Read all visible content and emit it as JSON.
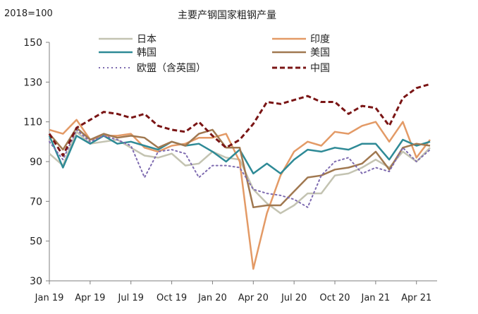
{
  "chart_data": {
    "type": "line",
    "title": "主要产钢国家粗钢产量",
    "unit_label": "2018=100",
    "xlabel": "",
    "ylabel": "",
    "ylim": [
      30,
      150
    ],
    "y_ticks": [
      30,
      50,
      70,
      90,
      110,
      130,
      150
    ],
    "x_tick_labels": [
      "Jan 19",
      "Apr 19",
      "Jul 19",
      "Oct 19",
      "Jan 20",
      "Apr 20",
      "Jul 20",
      "Oct 20",
      "Jan 21",
      "Apr 21"
    ],
    "x_tick_every": 3,
    "grid": false,
    "legend_position": "top",
    "x": [
      "2019-01",
      "2019-02",
      "2019-03",
      "2019-04",
      "2019-05",
      "2019-06",
      "2019-07",
      "2019-08",
      "2019-09",
      "2019-10",
      "2019-11",
      "2019-12",
      "2020-01",
      "2020-02",
      "2020-03",
      "2020-04",
      "2020-05",
      "2020-06",
      "2020-07",
      "2020-08",
      "2020-09",
      "2020-10",
      "2020-11",
      "2020-12",
      "2021-01",
      "2021-02",
      "2021-03",
      "2021-04",
      "2021-05"
    ],
    "series": [
      {
        "name": "日本",
        "color": "#c3c3b1",
        "dash": "solid",
        "width": 2.5,
        "values": [
          94,
          88,
          105,
          99,
          100,
          101,
          97,
          93,
          92,
          94,
          88,
          89,
          95,
          92,
          91,
          76,
          69,
          64,
          68,
          74,
          74,
          83,
          84,
          87,
          91,
          87,
          95,
          90,
          97
        ]
      },
      {
        "name": "印度",
        "color": "#e39a66",
        "dash": "solid",
        "width": 2.5,
        "values": [
          106,
          104,
          111,
          101,
          103,
          103,
          104,
          97,
          95,
          98,
          99,
          102,
          102,
          104,
          90,
          36,
          64,
          83,
          95,
          100,
          98,
          105,
          104,
          108,
          110,
          100,
          110,
          92,
          101
        ]
      },
      {
        "name": "韩国",
        "color": "#2e8a96",
        "dash": "solid",
        "width": 2.5,
        "values": [
          103,
          87,
          103,
          99,
          103,
          99,
          100,
          98,
          96,
          100,
          98,
          99,
          95,
          90,
          96,
          84,
          89,
          84,
          91,
          96,
          95,
          97,
          96,
          99,
          99,
          91,
          101,
          98,
          100
        ]
      },
      {
        "name": "美国",
        "color": "#a07850",
        "dash": "solid",
        "width": 2.5,
        "values": [
          104,
          96,
          107,
          101,
          104,
          102,
          103,
          102,
          97,
          100,
          98,
          104,
          106,
          97,
          97,
          67,
          68,
          68,
          75,
          82,
          83,
          86,
          87,
          89,
          95,
          86,
          97,
          99,
          98
        ]
      },
      {
        "name": "欧盟（含英国）",
        "color": "#7e6bb0",
        "dash": "dotted",
        "width": 2,
        "values": [
          100,
          91,
          106,
          100,
          103,
          101,
          98,
          82,
          95,
          96,
          94,
          82,
          88,
          88,
          87,
          76,
          74,
          73,
          71,
          67,
          83,
          90,
          92,
          84,
          87,
          85,
          97,
          90,
          96
        ]
      },
      {
        "name": "中国",
        "color": "#7a1515",
        "dash": "dashed",
        "width": 3,
        "values": [
          104,
          93,
          107,
          111,
          115,
          114,
          112,
          114,
          108,
          106,
          105,
          110,
          103,
          97,
          101,
          109,
          120,
          119,
          121,
          123,
          120,
          120,
          114,
          118,
          117,
          108,
          122,
          127,
          129
        ]
      }
    ]
  }
}
